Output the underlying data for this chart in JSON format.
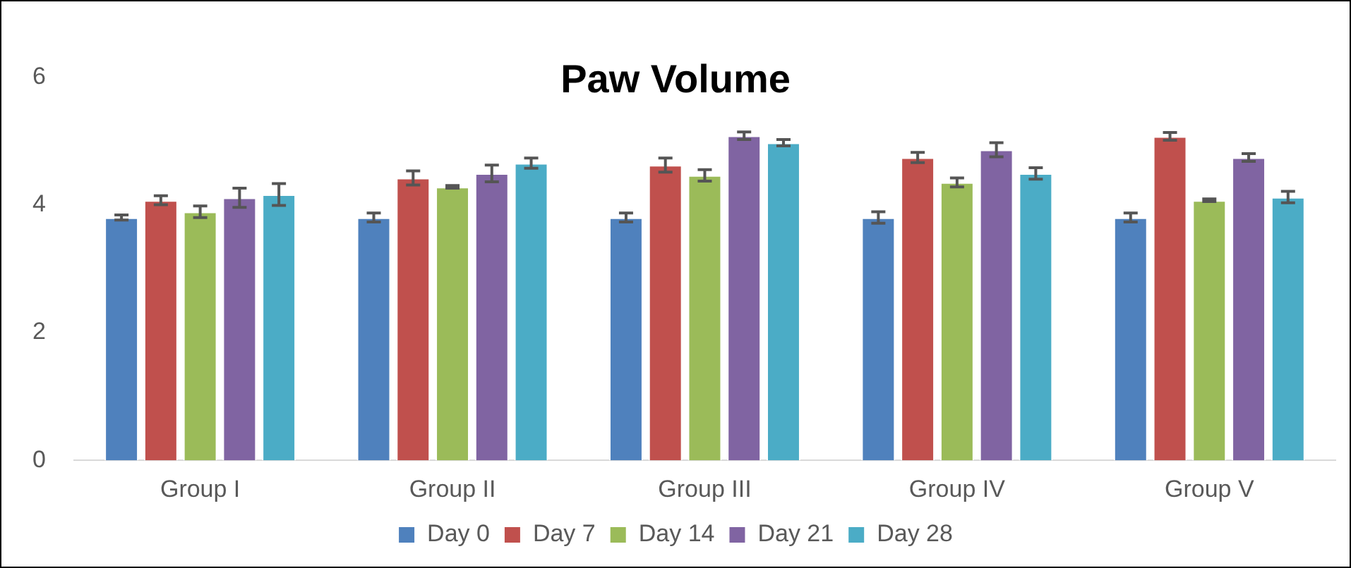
{
  "chart_data": {
    "type": "bar",
    "title": "Paw Volume",
    "categories": [
      "Group I",
      "Group II",
      "Group III",
      "Group IV",
      "Group V"
    ],
    "series": [
      {
        "name": "Day 0",
        "color": "#4f81bd",
        "values": [
          3.8,
          3.8,
          3.8,
          3.8,
          3.8
        ],
        "errors": [
          0.04,
          0.07,
          0.07,
          0.09,
          0.07
        ]
      },
      {
        "name": "Day 7",
        "color": "#c0504d",
        "values": [
          4.07,
          4.42,
          4.62,
          4.74,
          5.07
        ],
        "errors": [
          0.07,
          0.11,
          0.11,
          0.08,
          0.06
        ]
      },
      {
        "name": "Day 14",
        "color": "#9bbb59",
        "values": [
          3.89,
          4.28,
          4.46,
          4.35,
          4.07
        ],
        "errors": [
          0.09,
          0.02,
          0.09,
          0.07,
          0.02
        ]
      },
      {
        "name": "Day 21",
        "color": "#8064a2",
        "values": [
          4.11,
          4.49,
          5.08,
          4.86,
          4.74
        ],
        "errors": [
          0.15,
          0.13,
          0.06,
          0.11,
          0.06
        ]
      },
      {
        "name": "Day 28",
        "color": "#4bacc6",
        "values": [
          4.16,
          4.65,
          4.97,
          4.49,
          4.12
        ],
        "errors": [
          0.17,
          0.08,
          0.05,
          0.09,
          0.09
        ]
      }
    ],
    "ylim": [
      0,
      6
    ],
    "yticks": [
      0,
      2,
      4,
      6
    ],
    "grid": false,
    "legend": "bottom"
  }
}
